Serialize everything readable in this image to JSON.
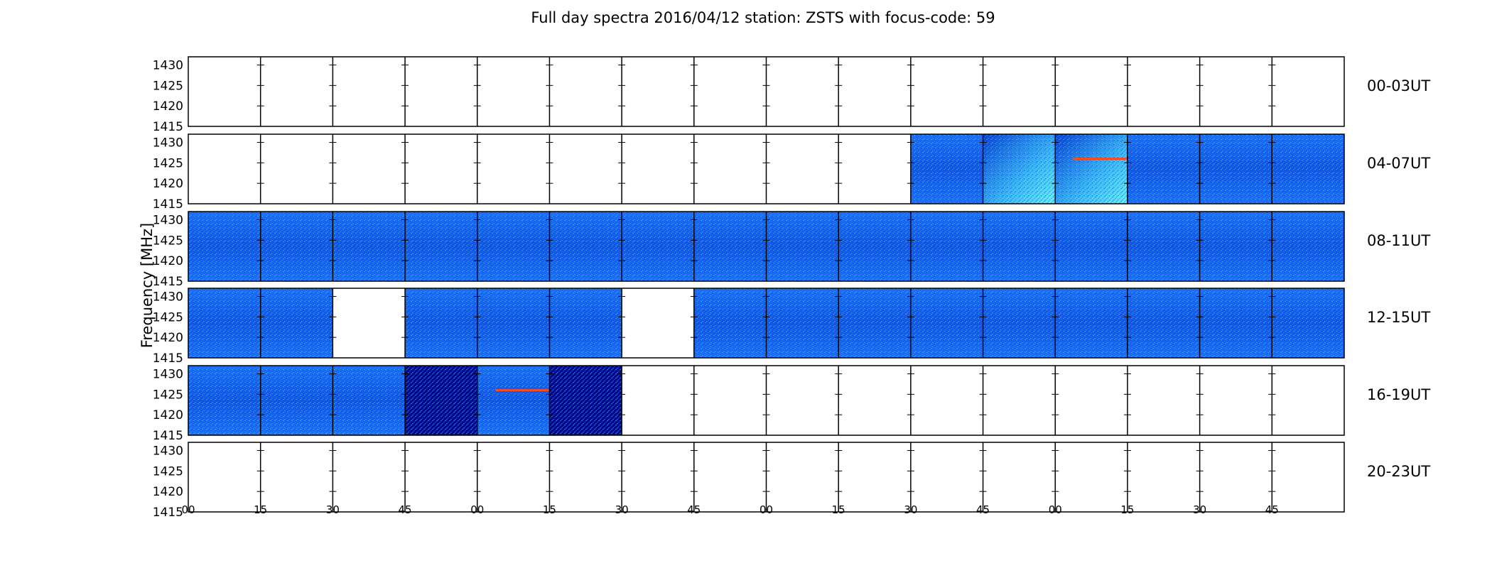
{
  "chart_data": {
    "type": "heatmap",
    "title": "Full day spectra 2016/04/12 station: ZSTS with focus-code: 59",
    "ylabel": "Frequency [MHz]",
    "xlabel": "",
    "yticks": [
      "1430",
      "1425",
      "1420",
      "1415"
    ],
    "ylim": [
      1415,
      1432
    ],
    "xticks": [
      "00",
      "15",
      "30",
      "45",
      "00",
      "15",
      "30",
      "45",
      "00",
      "15",
      "30",
      "45",
      "00",
      "15",
      "30",
      "45"
    ],
    "colormap": "jet",
    "grid": false,
    "rows": [
      {
        "label": "00-03UT",
        "panels": [
          0,
          0,
          0,
          0,
          0,
          0,
          0,
          0,
          0,
          0,
          0,
          0,
          0,
          0,
          0,
          0
        ]
      },
      {
        "label": "04-07UT",
        "panels": [
          0,
          0,
          0,
          0,
          0,
          0,
          0,
          0,
          0,
          0,
          1,
          1,
          1,
          1,
          1,
          1
        ],
        "highlights": [
          {
            "panel": 11,
            "style": "bright-gradient"
          },
          {
            "panel": 12,
            "style": "bright-gradient"
          },
          {
            "panel": 12,
            "line_mhz": 1426
          }
        ]
      },
      {
        "label": "08-11UT",
        "panels": [
          1,
          1,
          1,
          1,
          1,
          1,
          1,
          1,
          1,
          1,
          1,
          1,
          1,
          1,
          1,
          1
        ]
      },
      {
        "label": "12-15UT",
        "panels": [
          1,
          1,
          0,
          1,
          1,
          1,
          0,
          1,
          1,
          1,
          1,
          1,
          1,
          1,
          1,
          1
        ]
      },
      {
        "label": "16-19UT",
        "panels": [
          1,
          1,
          1,
          1,
          1,
          1,
          0,
          0,
          0,
          0,
          0,
          0,
          0,
          0,
          0,
          0
        ],
        "highlights": [
          {
            "panel": 3,
            "style": "dark"
          },
          {
            "panel": 4,
            "line_mhz": 1426
          },
          {
            "panel": 5,
            "style": "dark"
          }
        ]
      },
      {
        "label": "20-23UT",
        "panels": [
          0,
          0,
          0,
          0,
          0,
          0,
          0,
          0,
          0,
          0,
          0,
          0,
          0,
          0,
          0,
          0
        ]
      }
    ]
  },
  "colors": {
    "background": "#ffffff",
    "axis": "#000000",
    "jet_low": "#00008f",
    "jet_mid": "#1e6cff",
    "jet_high": "#6cf2ff",
    "hot_line": "#ff4a1a"
  }
}
